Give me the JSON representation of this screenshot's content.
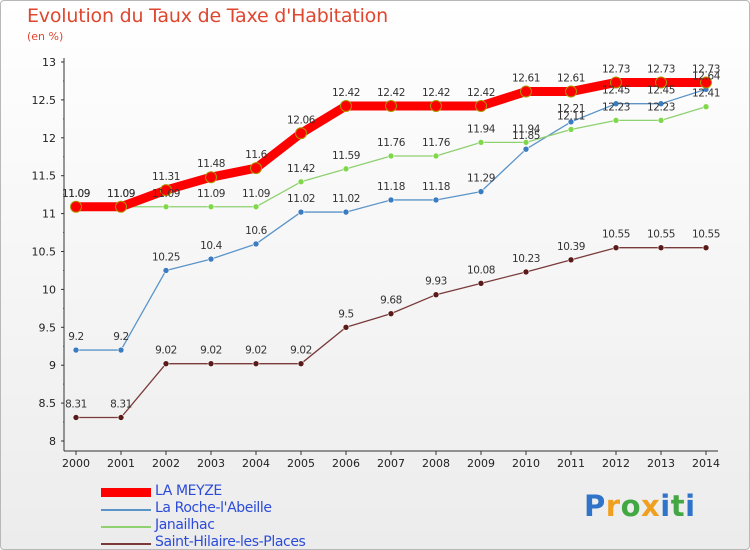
{
  "title": "Evolution du Taux de Taxe d'Habitation",
  "unit_label": "(en %)",
  "logo": {
    "letters": [
      "P",
      "r",
      "o",
      "x",
      "i",
      "t",
      "i"
    ],
    "colors": [
      "#2f74c8",
      "#f0a020",
      "#43a843",
      "#f0a020",
      "#2f74c8",
      "#43a843",
      "#2f74c8"
    ]
  },
  "chart_data": {
    "type": "line",
    "title": "Evolution du Taux de Taxe d'Habitation",
    "ylabel": "(en %)",
    "xlabel": "",
    "x": [
      "2000",
      "2001",
      "2002",
      "2003",
      "2004",
      "2005",
      "2006",
      "2007",
      "2008",
      "2009",
      "2010",
      "2011",
      "2012",
      "2013",
      "2014"
    ],
    "ylim": [
      8,
      13
    ],
    "yticks": [
      "8",
      "8.5",
      "9",
      "9.5",
      "10",
      "10.5",
      "11",
      "11.5",
      "12",
      "12.5",
      "13"
    ],
    "grid": false,
    "legend_position": "bottom-left",
    "series": [
      {
        "name": "LA MEYZE",
        "color": "#ff0000",
        "values": [
          11.09,
          11.09,
          11.31,
          11.48,
          11.6,
          12.06,
          12.42,
          12.42,
          12.42,
          12.42,
          12.61,
          12.61,
          12.73,
          12.73,
          12.73
        ],
        "labels": [
          "11.09",
          "11.09",
          "11.31",
          "11.48",
          "11.6",
          "12.06",
          "12.42",
          "12.42",
          "12.42",
          "12.42",
          "12.61",
          "12.61",
          "12.73",
          "12.73",
          "12.73"
        ]
      },
      {
        "name": "La Roche-l'Abeille",
        "color": "#5b94c8",
        "values": [
          9.2,
          9.2,
          10.25,
          10.4,
          10.6,
          11.02,
          11.02,
          11.18,
          11.18,
          11.29,
          11.85,
          12.21,
          12.45,
          12.45,
          12.64
        ],
        "labels": [
          "9.2",
          "9.2",
          "10.25",
          "10.4",
          "10.6",
          "11.02",
          "11.02",
          "11.18",
          "11.18",
          "11.29",
          "11.85",
          "12.21",
          "12.45",
          "12.45",
          "12.64"
        ]
      },
      {
        "name": "Janailhac",
        "color": "#8fd070",
        "values": [
          11.09,
          11.09,
          11.09,
          11.09,
          11.09,
          11.42,
          11.59,
          11.76,
          11.76,
          11.94,
          11.94,
          12.11,
          12.23,
          12.23,
          12.41
        ],
        "labels": [
          "11.09",
          "11.09",
          "11.09",
          "11.09",
          "11.09",
          "11.42",
          "11.59",
          "11.76",
          "11.76",
          "11.94",
          "11.94",
          "12.11",
          "12.23",
          "12.23",
          "12.41"
        ]
      },
      {
        "name": "Saint-Hilaire-les-Places",
        "color": "#7a3a3a",
        "values": [
          8.31,
          8.31,
          9.02,
          9.02,
          9.02,
          9.02,
          9.5,
          9.68,
          9.93,
          10.08,
          10.23,
          10.39,
          10.55,
          10.55,
          10.55
        ],
        "labels": [
          "8.31",
          "8.31",
          "9.02",
          "9.02",
          "9.02",
          "9.02",
          "9.5",
          "9.68",
          "9.93",
          "10.08",
          "10.23",
          "10.39",
          "10.55",
          "10.55",
          "10.55"
        ]
      }
    ]
  }
}
